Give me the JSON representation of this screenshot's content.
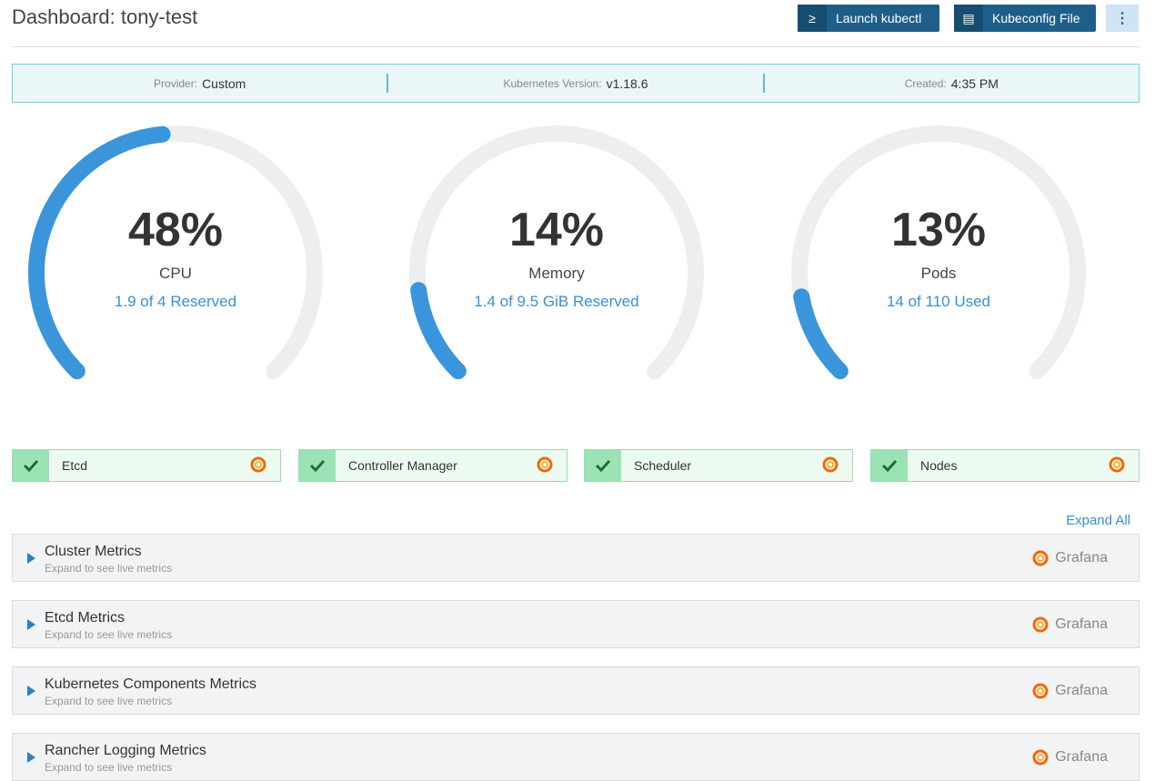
{
  "header": {
    "title": "Dashboard: tony-test",
    "buttons": [
      "Launch kubectl",
      "Kubeconfig File"
    ]
  },
  "info": [
    {
      "label": "Provider:",
      "value": "Custom"
    },
    {
      "label": "Kubernetes Version:",
      "value": "v1.18.6"
    },
    {
      "label": "Created:",
      "value": "4:35 PM"
    }
  ],
  "gauge_range": [
    0,
    100
  ],
  "gauges": [
    {
      "value": 48,
      "label": "48%",
      "name": "CPU",
      "detail": "1.9 of 4 Reserved"
    },
    {
      "value": 14,
      "label": "14%",
      "name": "Memory",
      "detail": "1.4 of 9.5 GiB Reserved"
    },
    {
      "value": 13,
      "label": "13%",
      "name": "Pods",
      "detail": "14 of 110 Used"
    }
  ],
  "components": [
    "Etcd",
    "Controller Manager",
    "Scheduler",
    "Nodes"
  ],
  "expand_all": "Expand All",
  "metrics": [
    {
      "title": "Cluster Metrics",
      "subtitle": "Expand to see live metrics",
      "link": "Grafana"
    },
    {
      "title": "Etcd Metrics",
      "subtitle": "Expand to see live metrics",
      "link": "Grafana"
    },
    {
      "title": "Kubernetes Components Metrics",
      "subtitle": "Expand to see live metrics",
      "link": "Grafana"
    },
    {
      "title": "Rancher Logging Metrics",
      "subtitle": "Expand to see live metrics",
      "link": "Grafana"
    }
  ]
}
